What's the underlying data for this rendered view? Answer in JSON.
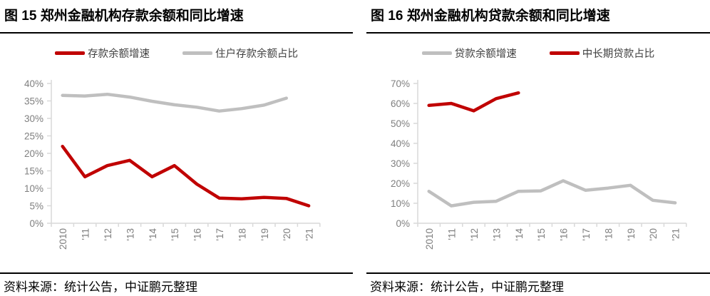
{
  "styles": {
    "accent_red": "#C00000",
    "series_gray": "#BFBFBF",
    "axis_color": "#D9D9D9",
    "tick_label_color": "#7F7F7F"
  },
  "panels": [
    {
      "title": "图 15 郑州金融机构存款余额和同比增速",
      "source": "资料来源：统计公告，中证鹏元整理"
    },
    {
      "title": "图 16 郑州金融机构贷款余额和同比增速",
      "source": "资料来源：统计公告，中证鹏元整理"
    }
  ],
  "chart_data": [
    {
      "type": "line",
      "title": "图 15 郑州金融机构存款余额和同比增速",
      "categories": [
        "2010",
        "'11",
        "'12",
        "'13",
        "'14",
        "'15",
        "'16",
        "'17",
        "'18",
        "'19",
        "'20",
        "'21"
      ],
      "series": [
        {
          "name": "存款余额增速",
          "color": "#C00000",
          "values": [
            22,
            13.3,
            16.5,
            18,
            13.3,
            16.5,
            11.2,
            7.2,
            7.0,
            7.4,
            7.1,
            5.0
          ]
        },
        {
          "name": "住户存款余额占比",
          "color": "#BFBFBF",
          "values": [
            36.6,
            36.4,
            36.9,
            36.1,
            34.9,
            33.9,
            33.2,
            32.1,
            32.8,
            33.8,
            35.8,
            null
          ]
        }
      ],
      "ylim": [
        0,
        40
      ],
      "ytick_step": 5,
      "ytick_suffix": "%",
      "legend_position": "top",
      "grid": false
    },
    {
      "type": "line",
      "title": "图 16 郑州金融机构贷款余额和同比增速",
      "categories": [
        "2010",
        "'11",
        "'12",
        "'13",
        "'14",
        "'15",
        "'16",
        "'17",
        "'18",
        "'19",
        "'20",
        "'21"
      ],
      "series": [
        {
          "name": "贷款余额增速",
          "color": "#BFBFBF",
          "values": [
            16,
            8.7,
            10.5,
            11,
            16,
            16.2,
            21.3,
            16.5,
            17.6,
            19,
            11.5,
            10.2
          ]
        },
        {
          "name": "中长期贷款占比",
          "color": "#C00000",
          "values": [
            59,
            60,
            56.3,
            62.4,
            65.3,
            null,
            null,
            null,
            null,
            null,
            null,
            null
          ]
        }
      ],
      "ylim": [
        0,
        70
      ],
      "ytick_step": 10,
      "ytick_suffix": "%",
      "legend_position": "top",
      "grid": false
    }
  ]
}
